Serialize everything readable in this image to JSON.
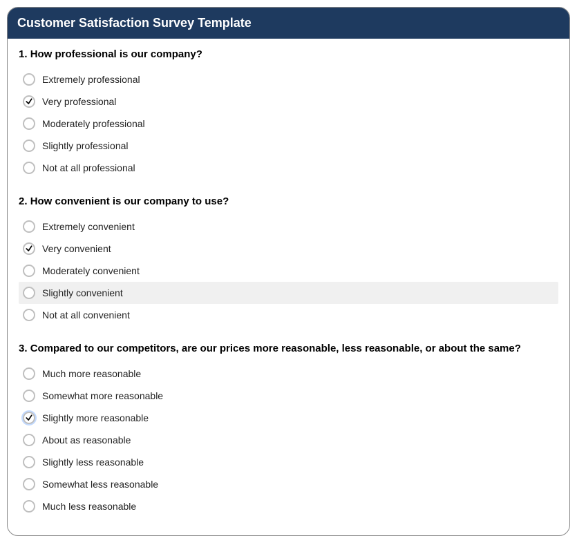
{
  "colors": {
    "header_bg": "#1e3a5f",
    "header_text": "#ffffff",
    "panel_border": "#888888",
    "panel_bg": "#ffffff",
    "radio_border": "#bfbfbf",
    "option_hover_bg": "#f0f0f0",
    "text": "#222222",
    "check_stroke": "#000000"
  },
  "header": {
    "title": "Customer Satisfaction Survey Template"
  },
  "questions": [
    {
      "number": "1.",
      "text": "How professional is our company?",
      "selected_index": 1,
      "options": [
        {
          "label": "Extremely professional",
          "hover": false,
          "focused": false
        },
        {
          "label": "Very professional",
          "hover": false,
          "focused": false
        },
        {
          "label": "Moderately professional",
          "hover": false,
          "focused": false
        },
        {
          "label": "Slightly professional",
          "hover": false,
          "focused": false
        },
        {
          "label": "Not at all professional",
          "hover": false,
          "focused": false
        }
      ]
    },
    {
      "number": "2.",
      "text": "How convenient is our company to use?",
      "selected_index": 1,
      "options": [
        {
          "label": "Extremely convenient",
          "hover": false,
          "focused": false
        },
        {
          "label": "Very convenient",
          "hover": false,
          "focused": false
        },
        {
          "label": "Moderately convenient",
          "hover": false,
          "focused": false
        },
        {
          "label": "Slightly convenient",
          "hover": true,
          "focused": false
        },
        {
          "label": "Not at all convenient",
          "hover": false,
          "focused": false
        }
      ]
    },
    {
      "number": "3.",
      "text": "Compared to our competitors, are our prices more reasonable, less reasonable, or about the same?",
      "selected_index": 2,
      "options": [
        {
          "label": "Much more reasonable",
          "hover": false,
          "focused": false
        },
        {
          "label": "Somewhat more reasonable",
          "hover": false,
          "focused": false
        },
        {
          "label": "Slightly more reasonable",
          "hover": false,
          "focused": true
        },
        {
          "label": "About as reasonable",
          "hover": false,
          "focused": false
        },
        {
          "label": "Slightly less reasonable",
          "hover": false,
          "focused": false
        },
        {
          "label": "Somewhat less reasonable",
          "hover": false,
          "focused": false
        },
        {
          "label": "Much less reasonable",
          "hover": false,
          "focused": false
        }
      ]
    }
  ]
}
